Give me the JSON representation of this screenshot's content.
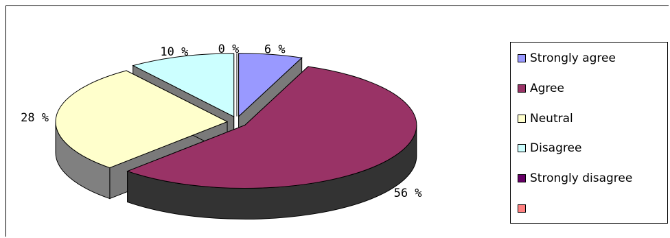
{
  "chart_data": {
    "type": "pie",
    "title": "",
    "categories": [
      "Strongly agree",
      "Agree",
      "Neutral",
      "Disagree",
      "Strongly disagree",
      ""
    ],
    "values": [
      6,
      56,
      28,
      10,
      0,
      0
    ],
    "labels": [
      "6 %",
      "56 %",
      "28 %",
      "10 %",
      "0 %",
      ""
    ],
    "colors": [
      "#9999ff",
      "#993366",
      "#ffffcc",
      "#ccffff",
      "#660066",
      "#ff8080"
    ],
    "exploded": true,
    "three_d": true,
    "legend_position": "right"
  }
}
